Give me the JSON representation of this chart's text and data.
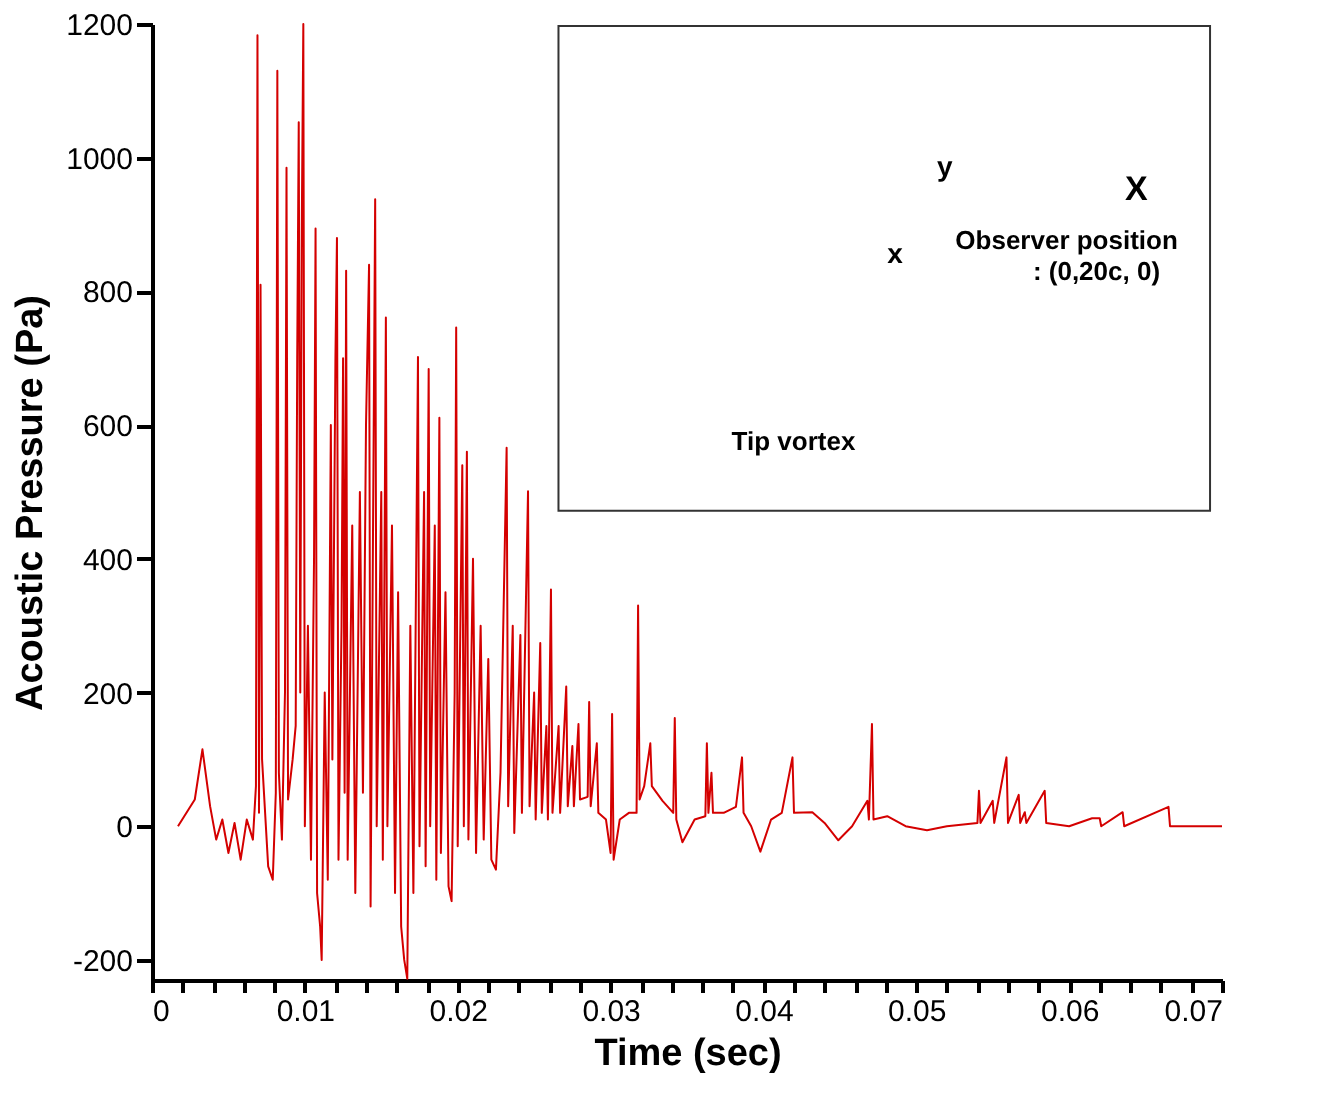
{
  "chart_data": {
    "type": "line",
    "xlabel": "Time (sec)",
    "ylabel": "Acoustic Pressure (Pa)",
    "xlim": [
      0,
      0.07
    ],
    "ylim": [
      -230,
      1200
    ],
    "xticks": [
      0,
      {
        "value": 0.002,
        "label": null
      },
      {
        "value": 0.004,
        "label": null
      },
      {
        "value": 0.006,
        "label": null
      },
      {
        "value": 0.008,
        "label": null
      },
      0.01,
      {
        "value": 0.012,
        "label": null
      },
      {
        "value": 0.014,
        "label": null
      },
      {
        "value": 0.016,
        "label": null
      },
      {
        "value": 0.018,
        "label": null
      },
      0.02,
      {
        "value": 0.022,
        "label": null
      },
      {
        "value": 0.024,
        "label": null
      },
      {
        "value": 0.026,
        "label": null
      },
      {
        "value": 0.028,
        "label": null
      },
      0.03,
      {
        "value": 0.032,
        "label": null
      },
      {
        "value": 0.034,
        "label": null
      },
      {
        "value": 0.036,
        "label": null
      },
      {
        "value": 0.038,
        "label": null
      },
      0.04,
      {
        "value": 0.042,
        "label": null
      },
      {
        "value": 0.044,
        "label": null
      },
      {
        "value": 0.046,
        "label": null
      },
      {
        "value": 0.048,
        "label": null
      },
      0.05,
      {
        "value": 0.052,
        "label": null
      },
      {
        "value": 0.054,
        "label": null
      },
      {
        "value": 0.056,
        "label": null
      },
      {
        "value": 0.058,
        "label": null
      },
      0.06,
      {
        "value": 0.062,
        "label": null
      },
      {
        "value": 0.064,
        "label": null
      },
      {
        "value": 0.066,
        "label": null
      },
      {
        "value": 0.068,
        "label": null
      },
      0.07
    ],
    "yticks": [
      -200,
      0,
      200,
      400,
      600,
      800,
      1000,
      1200
    ],
    "grid": false,
    "marker": "none",
    "line_style": "solid",
    "annotations": [
      "y",
      "x",
      "X",
      "Observer position",
      ": (0,20c, 0)",
      "Tip vortex"
    ],
    "series": [
      {
        "color": "#d40000",
        "x": [
          0.0017,
          0.0028,
          0.0033,
          0.0038,
          0.0042,
          0.0046,
          0.005,
          0.0054,
          0.0058,
          0.0062,
          0.0066,
          0.0068,
          0.0069,
          0.007,
          0.0071,
          0.0072,
          0.0076,
          0.0079,
          0.0081,
          0.0082,
          0.0083,
          0.0085,
          0.0087,
          0.0088,
          0.0089,
          0.0092,
          0.0094,
          0.0095,
          0.0096,
          0.0097,
          0.0098,
          0.0099,
          0.01,
          0.0102,
          0.0104,
          0.0106,
          0.0107,
          0.0108,
          0.011,
          0.0111,
          0.0113,
          0.0115,
          0.0117,
          0.0118,
          0.012,
          0.0121,
          0.0122,
          0.0124,
          0.0125,
          0.0126,
          0.0127,
          0.0128,
          0.0131,
          0.0133,
          0.0136,
          0.0138,
          0.014,
          0.0142,
          0.0143,
          0.0146,
          0.0147,
          0.015,
          0.0151,
          0.0153,
          0.0154,
          0.0157,
          0.0159,
          0.0161,
          0.0163,
          0.0165,
          0.0167,
          0.0169,
          0.0171,
          0.0174,
          0.0175,
          0.0178,
          0.0179,
          0.0181,
          0.0182,
          0.0185,
          0.0186,
          0.0188,
          0.0189,
          0.0192,
          0.0194,
          0.0196,
          0.0198,
          0.0199,
          0.02,
          0.0203,
          0.0204,
          0.0206,
          0.0207,
          0.021,
          0.0212,
          0.0215,
          0.0217,
          0.022,
          0.0222,
          0.0225,
          0.0228,
          0.0232,
          0.0233,
          0.0236,
          0.0237,
          0.0241,
          0.0242,
          0.0246,
          0.0247,
          0.025,
          0.0251,
          0.0254,
          0.0255,
          0.0258,
          0.0259,
          0.0261,
          0.0262,
          0.0266,
          0.0267,
          0.0271,
          0.0272,
          0.0275,
          0.0276,
          0.0279,
          0.028,
          0.0285,
          0.0286,
          0.0287,
          0.0291,
          0.0292,
          0.0297,
          0.03,
          0.0301,
          0.0302,
          0.0306,
          0.0312,
          0.0317,
          0.0318,
          0.0319,
          0.0322,
          0.0326,
          0.0327,
          0.0334,
          0.0341,
          0.0342,
          0.0343,
          0.0347,
          0.0355,
          0.0362,
          0.0363,
          0.0364,
          0.0366,
          0.0367,
          0.0374,
          0.0382,
          0.0386,
          0.0387,
          0.0392,
          0.0398,
          0.0405,
          0.0412,
          0.0419,
          0.042,
          0.0432,
          0.044,
          0.0449,
          0.0458,
          0.0468,
          0.0469,
          0.0471,
          0.0472,
          0.0481,
          0.0493,
          0.0507,
          0.052,
          0.054,
          0.0541,
          0.0542,
          0.055,
          0.0551,
          0.0559,
          0.056,
          0.0567,
          0.0568,
          0.0571,
          0.0572,
          0.0584,
          0.0585,
          0.06,
          0.0615,
          0.062,
          0.0621,
          0.0635,
          0.0636,
          0.0665,
          0.0666,
          0.07
        ],
        "values": [
          0,
          40,
          115,
          30,
          -20,
          10,
          -40,
          5,
          -50,
          10,
          -20,
          60,
          1183,
          20,
          810,
          100,
          -60,
          -80,
          50,
          1130,
          80,
          -20,
          200,
          985,
          40,
          100,
          150,
          700,
          1053,
          200,
          900,
          1200,
          0,
          300,
          -50,
          400,
          894,
          -100,
          -150,
          -200,
          200,
          -80,
          600,
          100,
          700,
          880,
          -50,
          300,
          700,
          50,
          831,
          -50,
          450,
          -100,
          500,
          50,
          600,
          840,
          -120,
          938,
          0,
          500,
          -50,
          761,
          0,
          450,
          -100,
          350,
          -150,
          -200,
          -228,
          300,
          -100,
          702,
          -30,
          500,
          -60,
          684,
          0,
          450,
          -80,
          611,
          -40,
          350,
          -90,
          -112,
          200,
          746,
          -30,
          540,
          0,
          560,
          -20,
          400,
          -40,
          300,
          -20,
          250,
          -50,
          -65,
          80,
          566,
          30,
          300,
          -10,
          286,
          20,
          501,
          30,
          200,
          10,
          274,
          20,
          150,
          10,
          354,
          20,
          150,
          20,
          209,
          30,
          120,
          30,
          153,
          40,
          44,
          186,
          30,
          124,
          20,
          10,
          -40,
          168,
          -50,
          10,
          20,
          20,
          330,
          40,
          60,
          124,
          60,
          38,
          20,
          162,
          10,
          -24,
          10,
          15,
          124,
          20,
          80,
          20,
          20,
          29,
          103,
          20,
          0,
          -38,
          10,
          20,
          103,
          20,
          21,
          5,
          -21,
          0,
          38,
          10,
          153,
          10,
          15,
          0,
          -6,
          0,
          5,
          53,
          5,
          38,
          5,
          103,
          5,
          47,
          5,
          21,
          5,
          53,
          5,
          0,
          12,
          12,
          0,
          21,
          0,
          29,
          0,
          0
        ]
      }
    ]
  }
}
